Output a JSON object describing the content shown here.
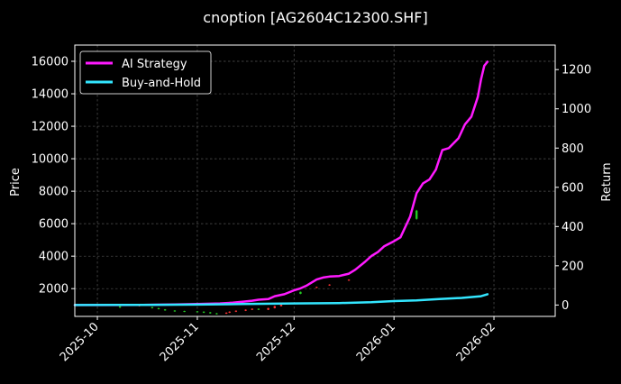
{
  "chart_data": {
    "type": "line",
    "title": "cnoption [AG2604C12300.SHF]",
    "xlabel": "",
    "ylabel_left": "Price",
    "ylabel_right": "Return",
    "x_ticks": [
      "2025-10",
      "2025-11",
      "2025-12",
      "2026-01",
      "2026-02"
    ],
    "y_left_ticks": [
      2000,
      4000,
      6000,
      8000,
      10000,
      12000,
      14000,
      16000
    ],
    "y_right_ticks": [
      0,
      200,
      400,
      600,
      800,
      1000,
      1200
    ],
    "y_left_range": [
      290,
      17000
    ],
    "y_right_range": [
      -58,
      1325
    ],
    "x_range": [
      "2025-09-24",
      "2026-02-20"
    ],
    "grid": true,
    "legend": {
      "placement": "top-left",
      "entries": [
        "AI Strategy",
        "Buy-and-Hold"
      ]
    },
    "colors": {
      "background": "#000000",
      "ai_strategy": "#ff1aff",
      "buy_and_hold": "#33e6ff",
      "candle_up": "#ff3333",
      "candle_down": "#22cc22",
      "grid": "#555555"
    },
    "series": [
      {
        "name": "AI Strategy",
        "axis": "right",
        "x": [
          "2025-09-24",
          "2025-10-05",
          "2025-10-15",
          "2025-10-25",
          "2025-11-01",
          "2025-11-08",
          "2025-11-12",
          "2025-11-15",
          "2025-11-18",
          "2025-11-20",
          "2025-11-23",
          "2025-11-25",
          "2025-11-28",
          "2025-12-01",
          "2025-12-03",
          "2025-12-05",
          "2025-12-08",
          "2025-12-10",
          "2025-12-12",
          "2025-12-15",
          "2025-12-18",
          "2025-12-20",
          "2025-12-23",
          "2025-12-25",
          "2025-12-27",
          "2025-12-29",
          "2026-01-01",
          "2026-01-03",
          "2026-01-06",
          "2026-01-08",
          "2026-01-10",
          "2026-01-12",
          "2026-01-14",
          "2026-01-16",
          "2026-01-18",
          "2026-01-21",
          "2026-01-23",
          "2026-01-25",
          "2026-01-27",
          "2026-01-28",
          "2026-01-29",
          "2026-01-30"
        ],
        "values": [
          0,
          0,
          1,
          3,
          5,
          8,
          12,
          17,
          22,
          27,
          30,
          45,
          55,
          75,
          85,
          100,
          130,
          140,
          145,
          148,
          160,
          180,
          220,
          250,
          270,
          300,
          325,
          345,
          450,
          570,
          620,
          640,
          690,
          790,
          800,
          850,
          920,
          960,
          1060,
          1150,
          1220,
          1240
        ]
      },
      {
        "name": "Buy-and-Hold",
        "axis": "right",
        "x": [
          "2025-09-24",
          "2025-10-15",
          "2025-11-01",
          "2025-11-15",
          "2025-12-01",
          "2025-12-15",
          "2025-12-25",
          "2026-01-01",
          "2026-01-08",
          "2026-01-15",
          "2026-01-22",
          "2026-01-28",
          "2026-01-30"
        ],
        "values": [
          0,
          1,
          2,
          5,
          8,
          10,
          14,
          20,
          24,
          30,
          36,
          45,
          55
        ]
      }
    ],
    "candles": [
      {
        "x": "2025-10-08",
        "open": 900,
        "close": 850,
        "high": 950,
        "low": 800
      },
      {
        "x": "2025-10-14",
        "open": 920,
        "close": 980,
        "high": 1000,
        "low": 900
      },
      {
        "x": "2025-10-18",
        "open": 860,
        "close": 800,
        "high": 880,
        "low": 780
      },
      {
        "x": "2025-10-20",
        "open": 800,
        "close": 740,
        "high": 820,
        "low": 720
      },
      {
        "x": "2025-10-22",
        "open": 720,
        "close": 660,
        "high": 740,
        "low": 640
      },
      {
        "x": "2025-10-25",
        "open": 650,
        "close": 600,
        "high": 670,
        "low": 580
      },
      {
        "x": "2025-10-28",
        "open": 620,
        "close": 580,
        "high": 640,
        "low": 560
      },
      {
        "x": "2025-11-01",
        "open": 600,
        "close": 560,
        "high": 620,
        "low": 540
      },
      {
        "x": "2025-11-03",
        "open": 580,
        "close": 520,
        "high": 600,
        "low": 500
      },
      {
        "x": "2025-11-05",
        "open": 540,
        "close": 480,
        "high": 560,
        "low": 460
      },
      {
        "x": "2025-11-07",
        "open": 480,
        "close": 430,
        "high": 500,
        "low": 410
      },
      {
        "x": "2025-11-10",
        "open": 460,
        "close": 520,
        "high": 540,
        "low": 440
      },
      {
        "x": "2025-11-11",
        "open": 520,
        "close": 580,
        "high": 600,
        "low": 500
      },
      {
        "x": "2025-11-13",
        "open": 580,
        "close": 640,
        "high": 660,
        "low": 560
      },
      {
        "x": "2025-11-16",
        "open": 640,
        "close": 700,
        "high": 720,
        "low": 620
      },
      {
        "x": "2025-11-18",
        "open": 700,
        "close": 760,
        "high": 780,
        "low": 680
      },
      {
        "x": "2025-11-20",
        "open": 760,
        "close": 700,
        "high": 780,
        "low": 680
      },
      {
        "x": "2025-11-23",
        "open": 700,
        "close": 800,
        "high": 820,
        "low": 680
      },
      {
        "x": "2025-11-25",
        "open": 800,
        "close": 920,
        "high": 940,
        "low": 780
      },
      {
        "x": "2025-11-27",
        "open": 920,
        "close": 1040,
        "high": 1060,
        "low": 900
      },
      {
        "x": "2025-12-03",
        "open": 1800,
        "close": 1680,
        "high": 1820,
        "low": 1660
      },
      {
        "x": "2025-12-08",
        "open": 2050,
        "close": 2100,
        "high": 2120,
        "low": 2030
      },
      {
        "x": "2025-12-12",
        "open": 2200,
        "close": 2250,
        "high": 2270,
        "low": 2180
      },
      {
        "x": "2025-12-18",
        "open": 2500,
        "close": 2550,
        "high": 2570,
        "low": 2480
      },
      {
        "x": "2026-01-08",
        "open": 6800,
        "close": 6300,
        "high": 6850,
        "low": 6250
      }
    ]
  }
}
